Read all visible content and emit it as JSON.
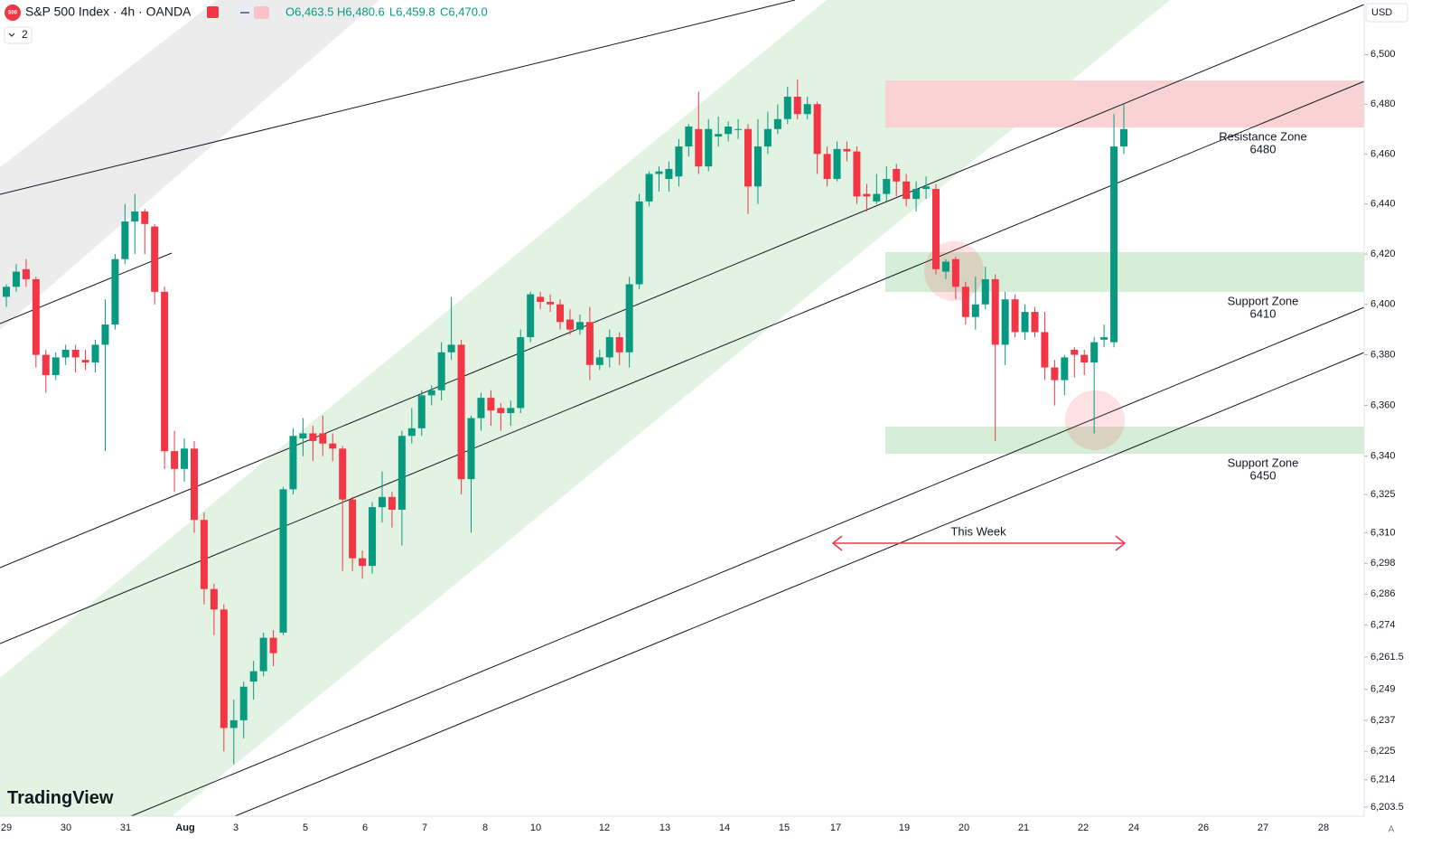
{
  "header": {
    "symbol": "S&P 500 Index · 4h · OANDA",
    "logo": "500",
    "ohlc": [
      "O6,463.5",
      "H6,480.6",
      "L6,459.8",
      "C6,470.0"
    ],
    "indicators": "2",
    "currency": "USD"
  },
  "chart_data": {
    "type": "candlestick",
    "log_scale": true,
    "up_color": "#089981",
    "down_color": "#f23645",
    "open": [
      6403,
      6407,
      6414,
      6410,
      6380,
      6372,
      6379,
      6382,
      6378,
      6377,
      6384,
      6392,
      6418,
      6433,
      6437,
      6431,
      6405,
      6342,
      6335,
      6343,
      6315,
      6288,
      6280,
      6234,
      6237,
      6252,
      6256,
      6269,
      6271,
      6327,
      6347,
      6349,
      6349,
      6345,
      6343,
      6323,
      6300,
      6297,
      6320,
      6324,
      6319,
      6348,
      6351,
      6364,
      6366,
      6381,
      6384,
      6331,
      6355,
      6363,
      6359,
      6357,
      6359,
      6387,
      6403,
      6401,
      6400,
      6394,
      6390,
      6393,
      6376,
      6379,
      6387,
      6381,
      6408,
      6441,
      6452,
      6450,
      6451,
      6463,
      6470,
      6455,
      6467,
      6468,
      6470,
      6470,
      6447,
      6463,
      6470,
      6474,
      6483,
      6476,
      6480,
      6460,
      6450,
      6462,
      6461,
      6444,
      6441,
      6444,
      6454,
      6449,
      6442,
      6446,
      6446,
      6413,
      6418,
      6407,
      6395,
      6400,
      6410,
      6384,
      6402,
      6389,
      6397,
      6389,
      6375,
      6370,
      6382,
      6380,
      6377,
      6386,
      6385,
      6463
    ],
    "high": [
      6408,
      6416,
      6418,
      6411,
      6382,
      6381,
      6384,
      6384,
      6382,
      6386,
      6402,
      6420,
      6440,
      6444,
      6438,
      6432,
      6407,
      6350,
      6347,
      6346,
      6318,
      6290,
      6282,
      6245,
      6252,
      6260,
      6271,
      6272,
      6328,
      6351,
      6355,
      6352,
      6356,
      6349,
      6344,
      6324,
      6303,
      6322,
      6334,
      6326,
      6350,
      6359,
      6366,
      6368,
      6385,
      6403,
      6386,
      6356,
      6365,
      6366,
      6361,
      6362,
      6390,
      6405,
      6405,
      6404,
      6402,
      6398,
      6396,
      6399,
      6382,
      6390,
      6389,
      6411,
      6444,
      6453,
      6455,
      6457,
      6466,
      6472,
      6485,
      6474,
      6475,
      6473,
      6474,
      6472,
      6474,
      6477,
      6480,
      6487,
      6490,
      6483,
      6481,
      6463,
      6465,
      6465,
      6463,
      6448,
      6452,
      6455,
      6456,
      6452,
      6449,
      6451,
      6448,
      6418,
      6419,
      6409,
      6411,
      6415,
      6412,
      6405,
      6404,
      6400,
      6399,
      6397,
      6378,
      6380,
      6383,
      6382,
      6387,
      6392,
      6476,
      6480
    ],
    "low": [
      6399,
      6405,
      6407,
      6375,
      6365,
      6370,
      6376,
      6373,
      6374,
      6373,
      6342,
      6390,
      6416,
      6420,
      6420,
      6400,
      6335,
      6326,
      6330,
      6310,
      6282,
      6270,
      6225,
      6220,
      6230,
      6245,
      6254,
      6258,
      6270,
      6325,
      6340,
      6338,
      6340,
      6338,
      6295,
      6295,
      6292,
      6294,
      6314,
      6312,
      6305,
      6345,
      6348,
      6360,
      6362,
      6378,
      6325,
      6310,
      6350,
      6352,
      6350,
      6352,
      6357,
      6385,
      6398,
      6397,
      6390,
      6388,
      6388,
      6370,
      6374,
      6375,
      6376,
      6375,
      6406,
      6439,
      6445,
      6445,
      6447,
      6459,
      6452,
      6453,
      6463,
      6465,
      6466,
      6436,
      6440,
      6460,
      6468,
      6472,
      6474,
      6474,
      6452,
      6447,
      6449,
      6457,
      6440,
      6437,
      6440,
      6441,
      6443,
      6439,
      6437,
      6442,
      6412,
      6410,
      6402,
      6392,
      6390,
      6398,
      6346,
      6376,
      6387,
      6386,
      6387,
      6370,
      6360,
      6364,
      6371,
      6372,
      6349,
      6383,
      6383,
      6460
    ],
    "close": [
      6407,
      6413,
      6410,
      6380,
      6372,
      6379,
      6382,
      6379,
      6377,
      6384,
      6392,
      6418,
      6433,
      6437,
      6432,
      6405,
      6342,
      6335,
      6343,
      6315,
      6288,
      6280,
      6234,
      6237,
      6250,
      6256,
      6269,
      6263,
      6327,
      6348,
      6349,
      6346,
      6345,
      6343,
      6323,
      6300,
      6297,
      6320,
      6324,
      6319,
      6348,
      6351,
      6364,
      6366,
      6381,
      6384,
      6331,
      6355,
      6363,
      6358,
      6357,
      6359,
      6387,
      6404,
      6401,
      6400,
      6393,
      6390,
      6393,
      6376,
      6379,
      6387,
      6381,
      6408,
      6441,
      6452,
      6453,
      6454,
      6463,
      6471,
      6455,
      6470,
      6468,
      6471,
      6470,
      6447,
      6463,
      6470,
      6474,
      6483,
      6476,
      6480,
      6460,
      6450,
      6462,
      6461,
      6443,
      6443,
      6444,
      6450,
      6449,
      6442,
      6446,
      6447,
      6414,
      6417,
      6407,
      6395,
      6400,
      6410,
      6384,
      6402,
      6389,
      6397,
      6389,
      6375,
      6370,
      6379,
      6380,
      6377,
      6385,
      6387,
      6463,
      6470
    ],
    "ylim": [
      6200,
      6522
    ],
    "yticks": [
      {
        "value": 6500,
        "label": "6,500"
      },
      {
        "value": 6480,
        "label": "6,480"
      },
      {
        "value": 6460,
        "label": "6,460"
      },
      {
        "value": 6440,
        "label": "6,440"
      },
      {
        "value": 6420,
        "label": "6,420"
      },
      {
        "value": 6400,
        "label": "6,400"
      },
      {
        "value": 6380,
        "label": "6,380"
      },
      {
        "value": 6360,
        "label": "6,360"
      },
      {
        "value": 6340,
        "label": "6,340"
      },
      {
        "value": 6325,
        "label": "6,325"
      },
      {
        "value": 6310,
        "label": "6,310"
      },
      {
        "value": 6298,
        "label": "6,298"
      },
      {
        "value": 6286,
        "label": "6,286"
      },
      {
        "value": 6274,
        "label": "6,274"
      },
      {
        "value": 6261.5,
        "label": "6,261.5"
      },
      {
        "value": 6249,
        "label": "6,249"
      },
      {
        "value": 6237,
        "label": "6,237"
      },
      {
        "value": 6225,
        "label": "6,225"
      },
      {
        "value": 6214,
        "label": "6,214"
      },
      {
        "value": 6203.5,
        "label": "6,203.5"
      }
    ],
    "x_labels": [
      "29",
      "30",
      "31",
      "Aug",
      "3",
      "5",
      "6",
      "7",
      "8",
      "10",
      "12",
      "13",
      "14",
      "15",
      "17",
      "19",
      "20",
      "21",
      "22",
      "24",
      "26",
      "27",
      "28"
    ],
    "annotations": [
      "Resistance Zone",
      "6480",
      "Support Zone",
      "6410",
      "Support Zone",
      "6450",
      "This Week"
    ]
  },
  "watermark": "TradingView",
  "corner": "A"
}
